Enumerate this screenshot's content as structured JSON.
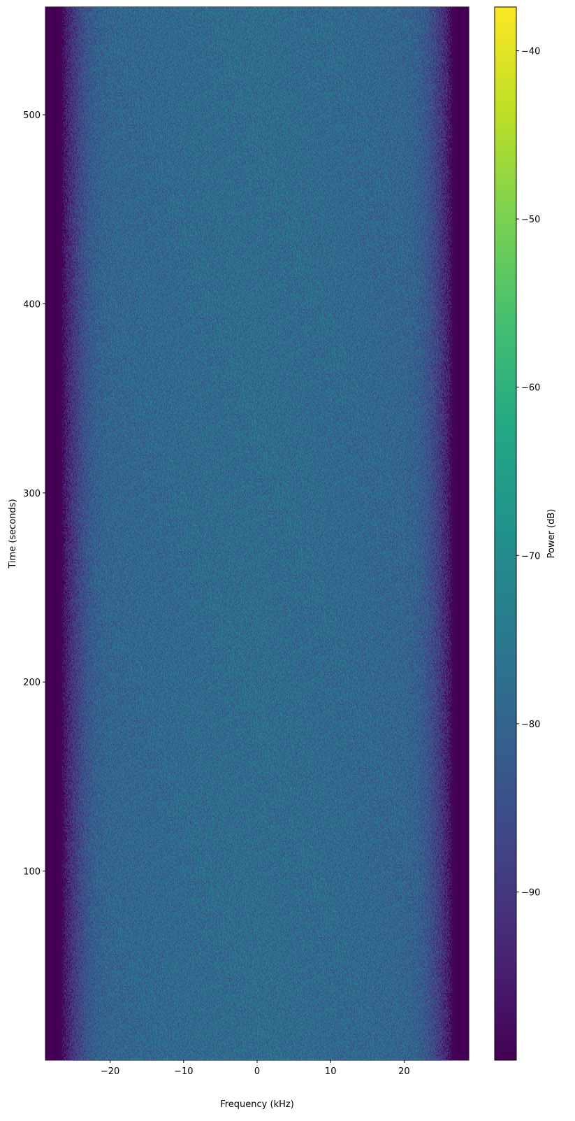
{
  "chart_data": {
    "type": "heatmap",
    "xlabel": "Frequency (kHz)",
    "ylabel": "Time (seconds)",
    "xlim": [
      -28.8,
      28.8
    ],
    "ylim": [
      0,
      557
    ],
    "xticks": [
      -20,
      -10,
      0,
      10,
      20
    ],
    "yticks": [
      100,
      200,
      300,
      400,
      500
    ],
    "colormap": "viridis",
    "colorbar": {
      "label": "Power (dB)",
      "range": [
        -100,
        -37.4
      ],
      "ticks": [
        -90,
        -80,
        -70,
        -60,
        -50,
        -40
      ]
    },
    "mean_power_profile": {
      "frequency_khz": [
        -28.8,
        -27,
        -26.5,
        -26,
        -25,
        -24,
        -23,
        -22,
        -20,
        -15,
        -10,
        0,
        10,
        15,
        20,
        22,
        23,
        24,
        25,
        26,
        26.5,
        27,
        28.8
      ],
      "power_db": [
        -100,
        -100,
        -99,
        -95,
        -90,
        -86,
        -83,
        -81,
        -79.5,
        -79,
        -78.5,
        -78,
        -78.5,
        -79,
        -79.5,
        -81,
        -83,
        -86,
        -90,
        -95,
        -99,
        -100,
        -100
      ]
    },
    "noise_std_db": 3,
    "grid": false
  }
}
